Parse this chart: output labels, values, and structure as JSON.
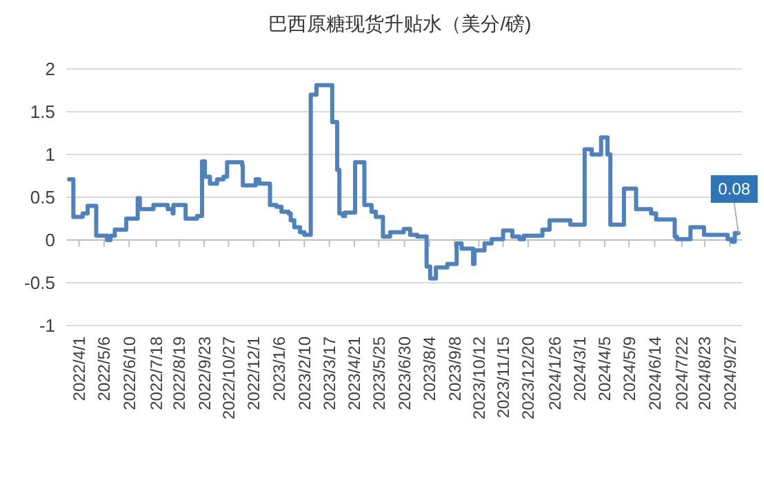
{
  "chart_data": {
    "type": "step",
    "title": "巴西原糖现货升贴水（美分/磅)",
    "x": [
      "2022-03-18",
      "2022-03-24",
      "2022-04-06",
      "2022-04-13",
      "2022-04-25",
      "2022-05-10",
      "2022-05-15",
      "2022-05-21",
      "2022-06-06",
      "2022-06-22",
      "2022-06-25",
      "2022-07-14",
      "2022-08-03",
      "2022-08-10",
      "2022-08-11",
      "2022-08-28",
      "2022-09-13",
      "2022-09-20",
      "2022-09-24",
      "2022-10-01",
      "2022-10-11",
      "2022-10-20",
      "2022-10-25",
      "2022-11-15",
      "2022-11-16",
      "2022-12-04",
      "2022-12-09",
      "2022-12-24",
      "2023-01-02",
      "2023-01-09",
      "2023-01-19",
      "2023-01-22",
      "2023-01-27",
      "2023-02-04",
      "2023-02-10",
      "2023-02-19",
      "2023-02-27",
      "2023-03-21",
      "2023-03-28",
      "2023-03-31",
      "2023-04-05",
      "2023-04-08",
      "2023-04-22",
      "2023-05-05",
      "2023-05-15",
      "2023-05-21",
      "2023-05-31",
      "2023-06-10",
      "2023-06-29",
      "2023-07-08",
      "2023-07-18",
      "2023-07-31",
      "2023-08-05",
      "2023-08-13",
      "2023-08-29",
      "2023-09-11",
      "2023-09-18",
      "2023-10-04",
      "2023-10-06",
      "2023-10-20",
      "2023-10-30",
      "2023-11-15",
      "2023-11-28",
      "2023-12-08",
      "2023-12-14",
      "2024-01-09",
      "2024-01-19",
      "2024-02-17",
      "2024-03-08",
      "2024-03-18",
      "2024-03-31",
      "2024-04-09",
      "2024-04-13",
      "2024-05-02",
      "2024-05-19",
      "2024-06-09",
      "2024-06-16",
      "2024-07-12",
      "2024-07-15",
      "2024-08-03",
      "2024-08-22",
      "2024-09-24",
      "2024-09-30",
      "2024-10-04",
      "2024-10-09"
    ],
    "series": [
      {
        "color": "#4f81bd",
        "values": [
          0.71,
          0.27,
          0.31,
          0.4,
          0.05,
          0.0,
          0.05,
          0.12,
          0.25,
          0.49,
          0.36,
          0.41,
          0.36,
          0.31,
          0.41,
          0.25,
          0.28,
          0.92,
          0.74,
          0.66,
          0.71,
          0.74,
          0.91,
          0.87,
          0.64,
          0.71,
          0.66,
          0.41,
          0.39,
          0.33,
          0.31,
          0.23,
          0.15,
          0.09,
          0.06,
          1.7,
          1.81,
          1.38,
          0.82,
          0.31,
          0.28,
          0.32,
          0.91,
          0.41,
          0.33,
          0.27,
          0.04,
          0.09,
          0.13,
          0.06,
          0.04,
          -0.31,
          -0.45,
          -0.32,
          -0.28,
          -0.04,
          -0.1,
          -0.28,
          -0.12,
          -0.04,
          0.01,
          0.11,
          0.04,
          0.01,
          0.05,
          0.12,
          0.23,
          0.18,
          1.06,
          1.0,
          1.2,
          1.0,
          0.18,
          0.6,
          0.36,
          0.31,
          0.24,
          0.04,
          0.01,
          0.15,
          0.06,
          0.01,
          -0.02,
          0.08,
          0.08
        ]
      }
    ],
    "xlim": [
      "2022-03-14",
      "2024-10-14"
    ],
    "xticks": [
      {
        "value": "2022-04-01",
        "label": "2022/4/1"
      },
      {
        "value": "2022-05-06",
        "label": "2022/5/6"
      },
      {
        "value": "2022-06-10",
        "label": "2022/6/10"
      },
      {
        "value": "2022-07-18",
        "label": "2022/7/18"
      },
      {
        "value": "2022-08-19",
        "label": "2022/8/19"
      },
      {
        "value": "2022-09-23",
        "label": "2022/9/23"
      },
      {
        "value": "2022-10-27",
        "label": "2022/10/27"
      },
      {
        "value": "2022-12-01",
        "label": "2022/12/1"
      },
      {
        "value": "2023-01-06",
        "label": "2023/1/6"
      },
      {
        "value": "2023-02-10",
        "label": "2023/2/10"
      },
      {
        "value": "2023-03-17",
        "label": "2023/3/17"
      },
      {
        "value": "2023-04-21",
        "label": "2023/4/21"
      },
      {
        "value": "2023-05-25",
        "label": "2023/5/25"
      },
      {
        "value": "2023-06-30",
        "label": "2023/6/30"
      },
      {
        "value": "2023-08-04",
        "label": "2023/8/4"
      },
      {
        "value": "2023-09-08",
        "label": "2023/9/8"
      },
      {
        "value": "2023-10-12",
        "label": "2023/10/12"
      },
      {
        "value": "2023-11-15",
        "label": "2023/11/15"
      },
      {
        "value": "2023-12-20",
        "label": "2023/12/20"
      },
      {
        "value": "2024-01-26",
        "label": "2024/1/26"
      },
      {
        "value": "2024-03-01",
        "label": "2024/3/1"
      },
      {
        "value": "2024-04-05",
        "label": "2024/4/5"
      },
      {
        "value": "2024-05-09",
        "label": "2024/5/9"
      },
      {
        "value": "2024-06-14",
        "label": "2024/6/14"
      },
      {
        "value": "2024-07-22",
        "label": "2024/7/22"
      },
      {
        "value": "2024-08-23",
        "label": "2024/8/23"
      },
      {
        "value": "2024-09-27",
        "label": "2024/9/27"
      }
    ],
    "ylim": [
      -1,
      2
    ],
    "yticks": [
      -1,
      -0.5,
      0,
      0.5,
      1,
      1.5,
      2
    ],
    "grid": "y",
    "annotations": [
      {
        "text": "0.08",
        "x": "2024-10-09",
        "y": 0.08
      }
    ]
  }
}
